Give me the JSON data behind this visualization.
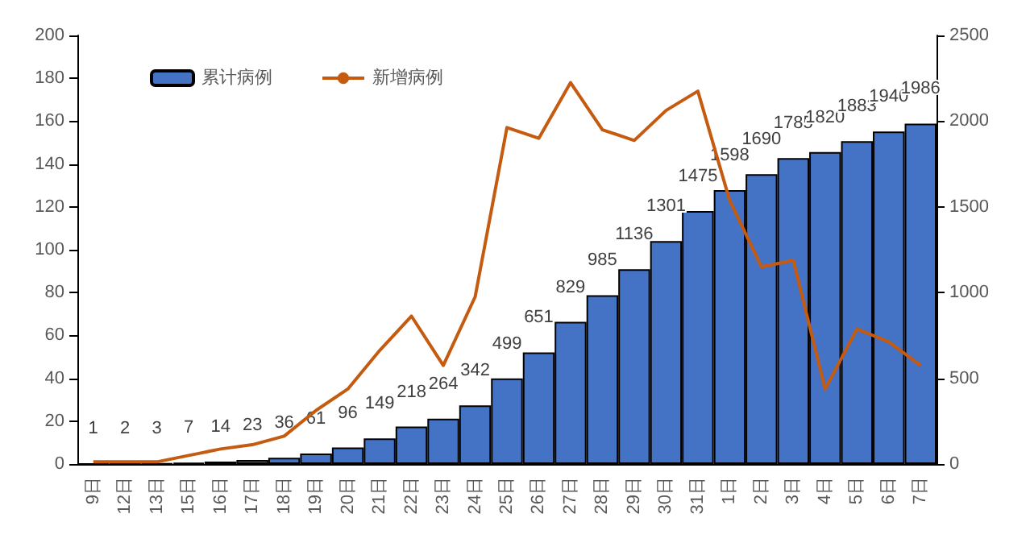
{
  "chart_data": {
    "type": "bar",
    "categories": [
      "9日",
      "12日",
      "13日",
      "15日",
      "16日",
      "17日",
      "18日",
      "19日",
      "20日",
      "21日",
      "22日",
      "23日",
      "24日",
      "25日",
      "26日",
      "27日",
      "28日",
      "29日",
      "30日",
      "31日",
      "1日",
      "2日",
      "3日",
      "4日",
      "5日",
      "6日",
      "7日"
    ],
    "series": [
      {
        "name": "累计病例",
        "axis": "y2",
        "color": "#4472c4",
        "data_labels": true,
        "values": [
          1,
          2,
          3,
          7,
          14,
          23,
          36,
          61,
          96,
          149,
          218,
          264,
          342,
          499,
          651,
          829,
          985,
          1136,
          1301,
          1475,
          1598,
          1690,
          1785,
          1820,
          1883,
          1940,
          1986
        ]
      },
      {
        "name": "新增病例",
        "type": "line",
        "color": "#c55a11",
        "values": [
          1,
          1,
          1,
          4,
          7,
          9,
          13,
          25,
          35,
          53,
          69,
          46,
          78,
          157,
          152,
          178,
          156,
          151,
          165,
          174,
          123,
          92,
          95,
          35,
          63,
          57,
          46
        ]
      }
    ],
    "ylim": [
      0,
      200
    ],
    "yticks": [
      0,
      20,
      40,
      60,
      80,
      100,
      120,
      140,
      160,
      180,
      200
    ],
    "y2lim": [
      0,
      2500
    ],
    "y2ticks": [
      0,
      500,
      1000,
      1500,
      2000,
      2500
    ],
    "grid": false,
    "legend": "top left",
    "marker": "none",
    "line_style": "solid"
  }
}
